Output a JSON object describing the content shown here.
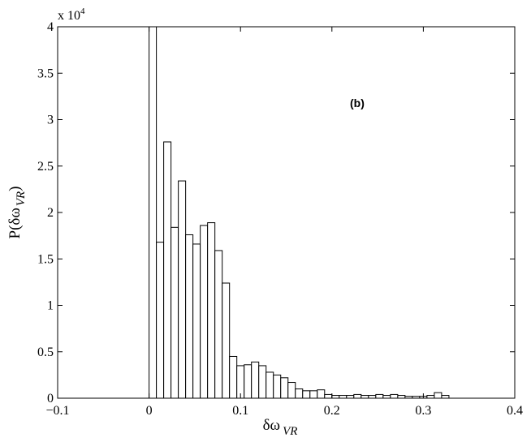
{
  "chart_data": {
    "type": "bar",
    "title": "",
    "xlabel_main": "δω",
    "xlabel_sub": "VR",
    "ylabel_main": "P(δω",
    "ylabel_sub": "VR",
    "ylabel_close": ")",
    "annotation": "(b)",
    "y_multiplier_prefix": "x 10",
    "y_multiplier_exp": "4",
    "xlim": [
      -0.1,
      0.4
    ],
    "ylim": [
      0,
      40000
    ],
    "x_ticks": [
      -0.1,
      0,
      0.1,
      0.2,
      0.3,
      0.4
    ],
    "x_tick_labels": [
      "−0.1",
      "0",
      "0.1",
      "0.2",
      "0.3",
      "0.4"
    ],
    "y_ticks": [
      0,
      5000,
      10000,
      15000,
      20000,
      25000,
      30000,
      35000,
      40000
    ],
    "y_tick_labels": [
      "0",
      "0.5",
      "1",
      "1.5",
      "2",
      "2.5",
      "3",
      "3.5",
      "4"
    ],
    "grid": false,
    "bin_start": 0,
    "bin_width": 0.008,
    "values": [
      40000,
      16800,
      27600,
      18400,
      23400,
      17600,
      16600,
      18600,
      18900,
      15900,
      12400,
      4500,
      3500,
      3600,
      3900,
      3500,
      2800,
      2500,
      2200,
      1700,
      1000,
      800,
      800,
      900,
      400,
      300,
      300,
      300,
      400,
      300,
      300,
      400,
      300,
      400,
      300,
      200,
      200,
      200,
      300,
      600,
      300
    ]
  }
}
